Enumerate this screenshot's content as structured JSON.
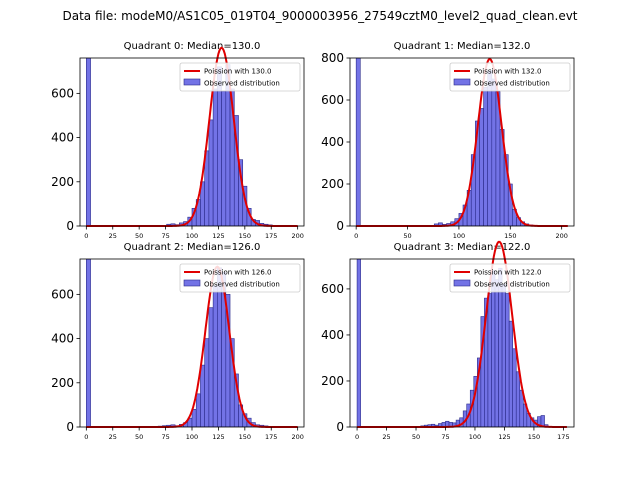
{
  "figure": {
    "suptitle": "Data file: modeM0/AS1C05_019T04_9000003956_27549cztM0_level2_quad_clean.evt",
    "colors": {
      "bars": "#7373e6",
      "bar_edge": "#2a2a8a",
      "fit": "#e00000"
    }
  },
  "chart_data": [
    {
      "type": "bar",
      "title": "Quadrant 0: Median=130.0",
      "median": 130,
      "xlim": [
        -6,
        206
      ],
      "ylim": [
        0,
        760
      ],
      "xticks": [
        0,
        25,
        50,
        75,
        100,
        125,
        150,
        175,
        200
      ],
      "yticks": [
        0,
        200,
        400,
        600
      ],
      "bin_width": 4,
      "zero_bin": 760,
      "legend": {
        "fit_label": "Poission with 130.0",
        "hist_label": "Observed distribution",
        "position": "upper right"
      },
      "histogram": {
        "x": [
          76,
          80,
          84,
          88,
          92,
          96,
          100,
          104,
          108,
          112,
          116,
          120,
          124,
          128,
          132,
          136,
          140,
          144,
          148,
          152,
          156,
          160,
          164,
          168,
          172,
          176,
          180
        ],
        "values": [
          8,
          10,
          6,
          14,
          20,
          40,
          80,
          120,
          200,
          340,
          480,
          620,
          720,
          610,
          730,
          620,
          500,
          300,
          180,
          80,
          30,
          25,
          12,
          8,
          5,
          3,
          2
        ]
      }
    },
    {
      "type": "bar",
      "title": "Quadrant 1: Median=132.0",
      "median": 132,
      "xlim": [
        -6,
        212
      ],
      "ylim": [
        0,
        800
      ],
      "xticks": [
        0,
        50,
        100,
        150,
        200
      ],
      "yticks": [
        0,
        200,
        400,
        600,
        800
      ],
      "bin_width": 4,
      "zero_bin": 800,
      "legend": {
        "fit_label": "Poission with 132.0",
        "hist_label": "Observed distribution",
        "position": "upper right"
      },
      "histogram": {
        "x": [
          76,
          80,
          84,
          88,
          92,
          96,
          100,
          104,
          108,
          112,
          116,
          120,
          124,
          128,
          132,
          136,
          140,
          144,
          148,
          152,
          156,
          160,
          164,
          168
        ],
        "values": [
          10,
          15,
          8,
          12,
          20,
          35,
          60,
          100,
          170,
          340,
          500,
          560,
          660,
          740,
          700,
          640,
          460,
          340,
          200,
          80,
          40,
          20,
          10,
          5
        ]
      }
    },
    {
      "type": "bar",
      "title": "Quadrant 2: Median=126.0",
      "median": 126,
      "xlim": [
        -6,
        206
      ],
      "ylim": [
        0,
        760
      ],
      "xticks": [
        0,
        25,
        50,
        75,
        100,
        125,
        150,
        175,
        200
      ],
      "yticks": [
        0,
        200,
        400,
        600
      ],
      "bin_width": 4,
      "zero_bin": 760,
      "legend": {
        "fit_label": "Poission with 126.0",
        "hist_label": "Observed distribution",
        "position": "upper right"
      },
      "histogram": {
        "x": [
          68,
          72,
          76,
          80,
          84,
          88,
          92,
          96,
          100,
          104,
          108,
          112,
          116,
          120,
          124,
          128,
          132,
          136,
          140,
          144,
          148,
          152,
          156,
          160,
          164,
          168,
          172
        ],
        "values": [
          4,
          6,
          8,
          10,
          6,
          12,
          20,
          40,
          80,
          150,
          280,
          400,
          540,
          640,
          720,
          700,
          600,
          400,
          240,
          100,
          60,
          40,
          20,
          10,
          8,
          5,
          3
        ]
      }
    },
    {
      "type": "bar",
      "title": "Quadrant 3: Median=122.0",
      "median": 122,
      "xlim": [
        -6,
        184
      ],
      "ylim": [
        0,
        730
      ],
      "xticks": [
        0,
        25,
        50,
        75,
        100,
        125,
        150,
        175
      ],
      "yticks": [
        0,
        200,
        400,
        600
      ],
      "bin_width": 3,
      "zero_bin": 730,
      "legend": {
        "fit_label": "Poission with 122.0",
        "hist_label": "Observed distribution",
        "position": "upper right"
      },
      "histogram": {
        "x": [
          51,
          54,
          57,
          60,
          63,
          66,
          69,
          72,
          75,
          78,
          81,
          84,
          87,
          90,
          93,
          96,
          99,
          102,
          105,
          108,
          111,
          114,
          117,
          120,
          123,
          126,
          129,
          132,
          135,
          138,
          141,
          144,
          147,
          150,
          153,
          156,
          159
        ],
        "values": [
          3,
          5,
          8,
          10,
          12,
          8,
          15,
          20,
          25,
          20,
          18,
          30,
          40,
          70,
          100,
          160,
          220,
          300,
          480,
          560,
          580,
          680,
          640,
          690,
          620,
          580,
          460,
          340,
          240,
          160,
          100,
          60,
          40,
          30,
          45,
          50,
          10
        ]
      }
    }
  ]
}
